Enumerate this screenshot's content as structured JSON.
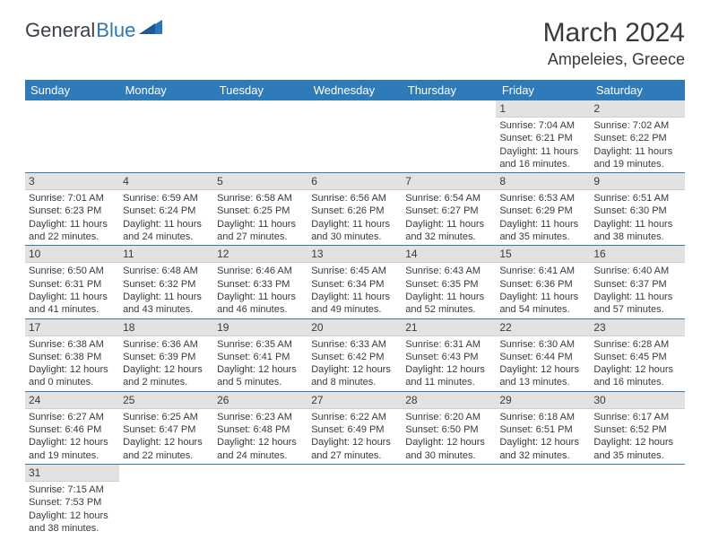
{
  "brand": {
    "first": "General",
    "second": "Blue"
  },
  "title": {
    "month": "March 2024",
    "location": "Ampeleies, Greece"
  },
  "dayHeaders": [
    "Sunday",
    "Monday",
    "Tuesday",
    "Wednesday",
    "Thursday",
    "Friday",
    "Saturday"
  ],
  "colors": {
    "headerBg": "#2f7ab8",
    "dayNumBg": "#e2e2e2",
    "borderColor": "#2f7ab8",
    "textColor": "#3a3a3a",
    "brandBlue": "#2f76b5"
  },
  "weeks": [
    [
      null,
      null,
      null,
      null,
      null,
      {
        "d": "1",
        "sr": "Sunrise: 7:04 AM",
        "ss": "Sunset: 6:21 PM",
        "dl1": "Daylight: 11 hours",
        "dl2": "and 16 minutes."
      },
      {
        "d": "2",
        "sr": "Sunrise: 7:02 AM",
        "ss": "Sunset: 6:22 PM",
        "dl1": "Daylight: 11 hours",
        "dl2": "and 19 minutes."
      }
    ],
    [
      {
        "d": "3",
        "sr": "Sunrise: 7:01 AM",
        "ss": "Sunset: 6:23 PM",
        "dl1": "Daylight: 11 hours",
        "dl2": "and 22 minutes."
      },
      {
        "d": "4",
        "sr": "Sunrise: 6:59 AM",
        "ss": "Sunset: 6:24 PM",
        "dl1": "Daylight: 11 hours",
        "dl2": "and 24 minutes."
      },
      {
        "d": "5",
        "sr": "Sunrise: 6:58 AM",
        "ss": "Sunset: 6:25 PM",
        "dl1": "Daylight: 11 hours",
        "dl2": "and 27 minutes."
      },
      {
        "d": "6",
        "sr": "Sunrise: 6:56 AM",
        "ss": "Sunset: 6:26 PM",
        "dl1": "Daylight: 11 hours",
        "dl2": "and 30 minutes."
      },
      {
        "d": "7",
        "sr": "Sunrise: 6:54 AM",
        "ss": "Sunset: 6:27 PM",
        "dl1": "Daylight: 11 hours",
        "dl2": "and 32 minutes."
      },
      {
        "d": "8",
        "sr": "Sunrise: 6:53 AM",
        "ss": "Sunset: 6:29 PM",
        "dl1": "Daylight: 11 hours",
        "dl2": "and 35 minutes."
      },
      {
        "d": "9",
        "sr": "Sunrise: 6:51 AM",
        "ss": "Sunset: 6:30 PM",
        "dl1": "Daylight: 11 hours",
        "dl2": "and 38 minutes."
      }
    ],
    [
      {
        "d": "10",
        "sr": "Sunrise: 6:50 AM",
        "ss": "Sunset: 6:31 PM",
        "dl1": "Daylight: 11 hours",
        "dl2": "and 41 minutes."
      },
      {
        "d": "11",
        "sr": "Sunrise: 6:48 AM",
        "ss": "Sunset: 6:32 PM",
        "dl1": "Daylight: 11 hours",
        "dl2": "and 43 minutes."
      },
      {
        "d": "12",
        "sr": "Sunrise: 6:46 AM",
        "ss": "Sunset: 6:33 PM",
        "dl1": "Daylight: 11 hours",
        "dl2": "and 46 minutes."
      },
      {
        "d": "13",
        "sr": "Sunrise: 6:45 AM",
        "ss": "Sunset: 6:34 PM",
        "dl1": "Daylight: 11 hours",
        "dl2": "and 49 minutes."
      },
      {
        "d": "14",
        "sr": "Sunrise: 6:43 AM",
        "ss": "Sunset: 6:35 PM",
        "dl1": "Daylight: 11 hours",
        "dl2": "and 52 minutes."
      },
      {
        "d": "15",
        "sr": "Sunrise: 6:41 AM",
        "ss": "Sunset: 6:36 PM",
        "dl1": "Daylight: 11 hours",
        "dl2": "and 54 minutes."
      },
      {
        "d": "16",
        "sr": "Sunrise: 6:40 AM",
        "ss": "Sunset: 6:37 PM",
        "dl1": "Daylight: 11 hours",
        "dl2": "and 57 minutes."
      }
    ],
    [
      {
        "d": "17",
        "sr": "Sunrise: 6:38 AM",
        "ss": "Sunset: 6:38 PM",
        "dl1": "Daylight: 12 hours",
        "dl2": "and 0 minutes."
      },
      {
        "d": "18",
        "sr": "Sunrise: 6:36 AM",
        "ss": "Sunset: 6:39 PM",
        "dl1": "Daylight: 12 hours",
        "dl2": "and 2 minutes."
      },
      {
        "d": "19",
        "sr": "Sunrise: 6:35 AM",
        "ss": "Sunset: 6:41 PM",
        "dl1": "Daylight: 12 hours",
        "dl2": "and 5 minutes."
      },
      {
        "d": "20",
        "sr": "Sunrise: 6:33 AM",
        "ss": "Sunset: 6:42 PM",
        "dl1": "Daylight: 12 hours",
        "dl2": "and 8 minutes."
      },
      {
        "d": "21",
        "sr": "Sunrise: 6:31 AM",
        "ss": "Sunset: 6:43 PM",
        "dl1": "Daylight: 12 hours",
        "dl2": "and 11 minutes."
      },
      {
        "d": "22",
        "sr": "Sunrise: 6:30 AM",
        "ss": "Sunset: 6:44 PM",
        "dl1": "Daylight: 12 hours",
        "dl2": "and 13 minutes."
      },
      {
        "d": "23",
        "sr": "Sunrise: 6:28 AM",
        "ss": "Sunset: 6:45 PM",
        "dl1": "Daylight: 12 hours",
        "dl2": "and 16 minutes."
      }
    ],
    [
      {
        "d": "24",
        "sr": "Sunrise: 6:27 AM",
        "ss": "Sunset: 6:46 PM",
        "dl1": "Daylight: 12 hours",
        "dl2": "and 19 minutes."
      },
      {
        "d": "25",
        "sr": "Sunrise: 6:25 AM",
        "ss": "Sunset: 6:47 PM",
        "dl1": "Daylight: 12 hours",
        "dl2": "and 22 minutes."
      },
      {
        "d": "26",
        "sr": "Sunrise: 6:23 AM",
        "ss": "Sunset: 6:48 PM",
        "dl1": "Daylight: 12 hours",
        "dl2": "and 24 minutes."
      },
      {
        "d": "27",
        "sr": "Sunrise: 6:22 AM",
        "ss": "Sunset: 6:49 PM",
        "dl1": "Daylight: 12 hours",
        "dl2": "and 27 minutes."
      },
      {
        "d": "28",
        "sr": "Sunrise: 6:20 AM",
        "ss": "Sunset: 6:50 PM",
        "dl1": "Daylight: 12 hours",
        "dl2": "and 30 minutes."
      },
      {
        "d": "29",
        "sr": "Sunrise: 6:18 AM",
        "ss": "Sunset: 6:51 PM",
        "dl1": "Daylight: 12 hours",
        "dl2": "and 32 minutes."
      },
      {
        "d": "30",
        "sr": "Sunrise: 6:17 AM",
        "ss": "Sunset: 6:52 PM",
        "dl1": "Daylight: 12 hours",
        "dl2": "and 35 minutes."
      }
    ],
    [
      {
        "d": "31",
        "sr": "Sunrise: 7:15 AM",
        "ss": "Sunset: 7:53 PM",
        "dl1": "Daylight: 12 hours",
        "dl2": "and 38 minutes."
      },
      null,
      null,
      null,
      null,
      null,
      null
    ]
  ]
}
